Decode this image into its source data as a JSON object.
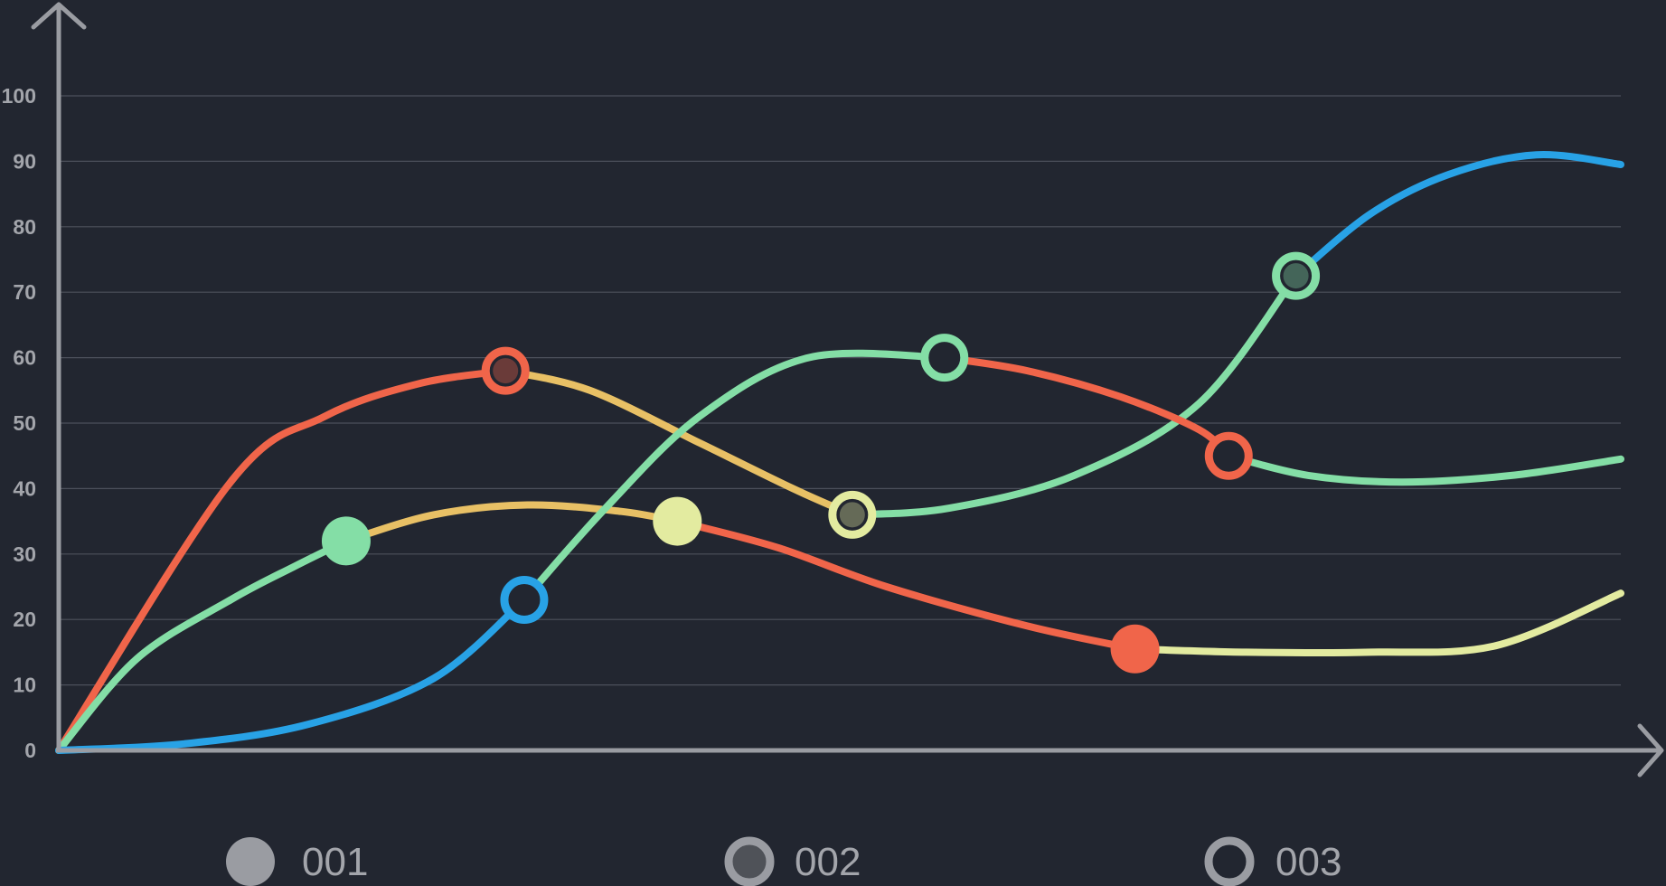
{
  "chart_data": {
    "type": "line",
    "title": "",
    "xlabel": "",
    "ylabel": "",
    "x_range": [
      0,
      100
    ],
    "ylim": [
      0,
      100
    ],
    "y_ticks": [
      0,
      10,
      20,
      30,
      40,
      50,
      60,
      70,
      80,
      90,
      100
    ],
    "grid": true,
    "legend_position": "bottom",
    "background": "#222630",
    "axis_color": "#9a9ca2",
    "grid_color": "#4c505b",
    "legend": [
      {
        "label": "001",
        "marker": "filled",
        "color": "#9a9ca2"
      },
      {
        "label": "002",
        "marker": "ring-filled",
        "color": "#9a9ca2"
      },
      {
        "label": "003",
        "marker": "ring",
        "color": "#9a9ca2"
      }
    ],
    "series": [
      {
        "color": "#f0654a",
        "points": [
          [
            0,
            0
          ],
          [
            11,
            41
          ],
          [
            17,
            51
          ],
          [
            23,
            56
          ],
          [
            28.6,
            58
          ]
        ],
        "marker": {
          "x": 28.6,
          "y": 58,
          "style": "ring-dark"
        }
      },
      {
        "color": "#e8c065",
        "points": [
          [
            28.6,
            58
          ],
          [
            34,
            55
          ],
          [
            41,
            47
          ],
          [
            47,
            40
          ],
          [
            50.8,
            36
          ]
        ],
        "marker": {
          "x": 50.8,
          "y": 36,
          "style": "ring-dark",
          "color": "#e3eba0"
        }
      },
      {
        "color": "#84dea6",
        "points": [
          [
            50.8,
            36
          ],
          [
            57,
            37
          ],
          [
            65,
            42
          ],
          [
            73,
            53
          ],
          [
            79.2,
            72.5
          ]
        ],
        "marker": {
          "x": 79.2,
          "y": 72.5,
          "style": "ring-dark"
        }
      },
      {
        "color": "#28a2e6",
        "points": [
          [
            79.2,
            72.5
          ],
          [
            84,
            82
          ],
          [
            89,
            88
          ],
          [
            94.6,
            91
          ],
          [
            100,
            89.5
          ]
        ],
        "marker": null
      },
      {
        "color": "#84dea6",
        "points": [
          [
            0,
            0
          ],
          [
            5,
            14
          ],
          [
            11,
            23
          ],
          [
            15,
            28
          ],
          [
            18.4,
            32
          ]
        ],
        "marker": {
          "x": 18.4,
          "y": 32,
          "style": "filled"
        }
      },
      {
        "color": "#e8c065",
        "points": [
          [
            18.4,
            32
          ],
          [
            24,
            36
          ],
          [
            30,
            37.5
          ],
          [
            36,
            36.5
          ],
          [
            39.6,
            35
          ]
        ],
        "marker": {
          "x": 39.6,
          "y": 35,
          "style": "filled",
          "color": "#e3eba0"
        }
      },
      {
        "color": "#f0654a",
        "points": [
          [
            39.6,
            35
          ],
          [
            46,
            31
          ],
          [
            53,
            25
          ],
          [
            62,
            19
          ],
          [
            68.9,
            15.5
          ]
        ],
        "marker": {
          "x": 68.9,
          "y": 15.5,
          "style": "filled"
        }
      },
      {
        "color": "#e3eba0",
        "points": [
          [
            68.9,
            15.5
          ],
          [
            76,
            15
          ],
          [
            84,
            15
          ],
          [
            92,
            16
          ],
          [
            100,
            24
          ]
        ],
        "marker": null
      },
      {
        "color": "#28a2e6",
        "points": [
          [
            0,
            0
          ],
          [
            8,
            1
          ],
          [
            16,
            4
          ],
          [
            24,
            11
          ],
          [
            29.8,
            23
          ]
        ],
        "marker": {
          "x": 29.8,
          "y": 23,
          "style": "ring-dark"
        }
      },
      {
        "color": "#84dea6",
        "points": [
          [
            29.8,
            23
          ],
          [
            35,
            37
          ],
          [
            41,
            51
          ],
          [
            48,
            60
          ],
          [
            56.7,
            60
          ]
        ],
        "marker": {
          "x": 56.7,
          "y": 60,
          "style": "ring-dark"
        }
      },
      {
        "color": "#f0654a",
        "points": [
          [
            56.7,
            60
          ],
          [
            62,
            58
          ],
          [
            68,
            54
          ],
          [
            73,
            49
          ],
          [
            74.9,
            45
          ]
        ],
        "marker": {
          "x": 74.9,
          "y": 45,
          "style": "ring-dark"
        }
      },
      {
        "color": "#84dea6",
        "points": [
          [
            74.9,
            45
          ],
          [
            80,
            42
          ],
          [
            86,
            41
          ],
          [
            93,
            42
          ],
          [
            100,
            44.5
          ]
        ],
        "marker": null
      }
    ]
  }
}
